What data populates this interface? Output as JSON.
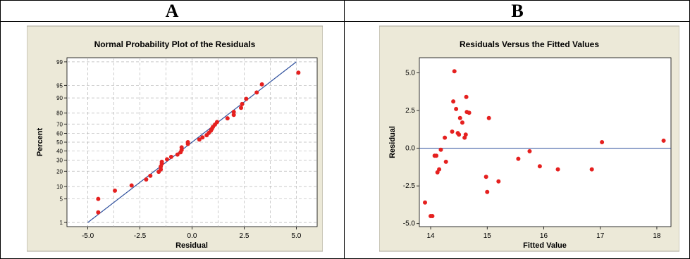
{
  "panels": [
    {
      "letter": "A"
    },
    {
      "letter": "B"
    }
  ],
  "chart_data": [
    {
      "type": "scatter",
      "title": "Normal Probability Plot of the Residuals",
      "xlabel": "Residual",
      "ylabel": "Percent",
      "xlim": [
        -6,
        6
      ],
      "x_ticks": [
        -5.0,
        -2.5,
        0.0,
        2.5,
        5.0
      ],
      "x_tick_labels": [
        "-5.0",
        "-2.5",
        "0.0",
        "2.5",
        "5.0"
      ],
      "y_scale": "normal-probability",
      "y_ticks": [
        1,
        5,
        10,
        20,
        30,
        40,
        50,
        60,
        70,
        80,
        90,
        95,
        99
      ],
      "y_tick_labels": [
        "1",
        "5",
        "10",
        "20",
        "30",
        "40",
        "50",
        "60",
        "70",
        "80",
        "90",
        "95",
        "99"
      ],
      "grid": true,
      "fit_line": {
        "x": [
          -5.0,
          5.0
        ],
        "y": [
          1,
          99
        ]
      },
      "points": [
        {
          "x": -4.5,
          "y": 2.1
        },
        {
          "x": -4.5,
          "y": 5.0
        },
        {
          "x": -3.7,
          "y": 8.0
        },
        {
          "x": -2.9,
          "y": 10.5
        },
        {
          "x": -2.2,
          "y": 14.0
        },
        {
          "x": -2.0,
          "y": 16.5
        },
        {
          "x": -1.6,
          "y": 19.5
        },
        {
          "x": -1.5,
          "y": 21.5
        },
        {
          "x": -1.5,
          "y": 24.0
        },
        {
          "x": -1.45,
          "y": 26.5
        },
        {
          "x": -1.45,
          "y": 28.5
        },
        {
          "x": -1.2,
          "y": 31.0
        },
        {
          "x": -1.0,
          "y": 33.5
        },
        {
          "x": -0.7,
          "y": 36.0
        },
        {
          "x": -0.55,
          "y": 38.5
        },
        {
          "x": -0.5,
          "y": 41.0
        },
        {
          "x": -0.5,
          "y": 44.0
        },
        {
          "x": -0.2,
          "y": 48.0
        },
        {
          "x": -0.2,
          "y": 50.0
        },
        {
          "x": 0.35,
          "y": 53.0
        },
        {
          "x": 0.5,
          "y": 55.5
        },
        {
          "x": 0.7,
          "y": 58.0
        },
        {
          "x": 0.8,
          "y": 60.5
        },
        {
          "x": 0.9,
          "y": 63.0
        },
        {
          "x": 0.95,
          "y": 65.0
        },
        {
          "x": 1.0,
          "y": 67.0
        },
        {
          "x": 1.1,
          "y": 69.5
        },
        {
          "x": 1.2,
          "y": 72.0
        },
        {
          "x": 1.7,
          "y": 75.5
        },
        {
          "x": 2.0,
          "y": 78.5
        },
        {
          "x": 2.0,
          "y": 81.0
        },
        {
          "x": 2.35,
          "y": 84.0
        },
        {
          "x": 2.4,
          "y": 86.5
        },
        {
          "x": 2.6,
          "y": 89.5
        },
        {
          "x": 3.1,
          "y": 92.5
        },
        {
          "x": 3.35,
          "y": 95.3
        },
        {
          "x": 5.1,
          "y": 97.8
        }
      ],
      "colors": {
        "points": "#e5201f",
        "line": "#2e4f9c",
        "grid": "#b7b7b7",
        "frame_bg": "#ece9d8"
      }
    },
    {
      "type": "scatter",
      "title": "Residuals Versus the Fitted Values",
      "xlabel": "Fitted Value",
      "ylabel": "Residual",
      "xlim": [
        13.8,
        18.25
      ],
      "ylim": [
        -5.2,
        6.0
      ],
      "x_ticks": [
        14,
        15,
        16,
        17,
        18
      ],
      "x_tick_labels": [
        "14",
        "15",
        "16",
        "17",
        "18"
      ],
      "y_ticks": [
        -5.0,
        -2.5,
        0.0,
        2.5,
        5.0
      ],
      "y_tick_labels": [
        "-5.0",
        "-2.5",
        "0.0",
        "2.5",
        "5.0"
      ],
      "reference_line_y": 0,
      "grid": false,
      "points": [
        {
          "x": 13.9,
          "y": -3.6
        },
        {
          "x": 14.0,
          "y": -4.5
        },
        {
          "x": 14.03,
          "y": -4.5
        },
        {
          "x": 14.07,
          "y": -0.5
        },
        {
          "x": 14.1,
          "y": -0.5
        },
        {
          "x": 14.12,
          "y": -1.6
        },
        {
          "x": 14.15,
          "y": -1.4
        },
        {
          "x": 14.18,
          "y": -0.1
        },
        {
          "x": 14.25,
          "y": 0.7
        },
        {
          "x": 14.27,
          "y": -0.9
        },
        {
          "x": 14.38,
          "y": 1.1
        },
        {
          "x": 14.4,
          "y": 3.1
        },
        {
          "x": 14.42,
          "y": 5.1
        },
        {
          "x": 14.45,
          "y": 2.6
        },
        {
          "x": 14.48,
          "y": 1.0
        },
        {
          "x": 14.5,
          "y": 0.9
        },
        {
          "x": 14.52,
          "y": 2.0
        },
        {
          "x": 14.56,
          "y": 1.7
        },
        {
          "x": 14.6,
          "y": 0.7
        },
        {
          "x": 14.62,
          "y": 0.9
        },
        {
          "x": 14.63,
          "y": 3.4
        },
        {
          "x": 14.64,
          "y": 2.4
        },
        {
          "x": 14.68,
          "y": 2.35
        },
        {
          "x": 14.98,
          "y": -1.9
        },
        {
          "x": 15.0,
          "y": -2.9
        },
        {
          "x": 15.03,
          "y": 2.0
        },
        {
          "x": 15.2,
          "y": -2.2
        },
        {
          "x": 15.55,
          "y": -0.7
        },
        {
          "x": 15.75,
          "y": -0.2
        },
        {
          "x": 15.93,
          "y": -1.2
        },
        {
          "x": 16.25,
          "y": -1.4
        },
        {
          "x": 16.85,
          "y": -1.4
        },
        {
          "x": 17.03,
          "y": 0.4
        },
        {
          "x": 18.12,
          "y": 0.5
        }
      ],
      "colors": {
        "points": "#e5201f",
        "line": "#2e4f9c",
        "frame_bg": "#ece9d8"
      }
    }
  ]
}
